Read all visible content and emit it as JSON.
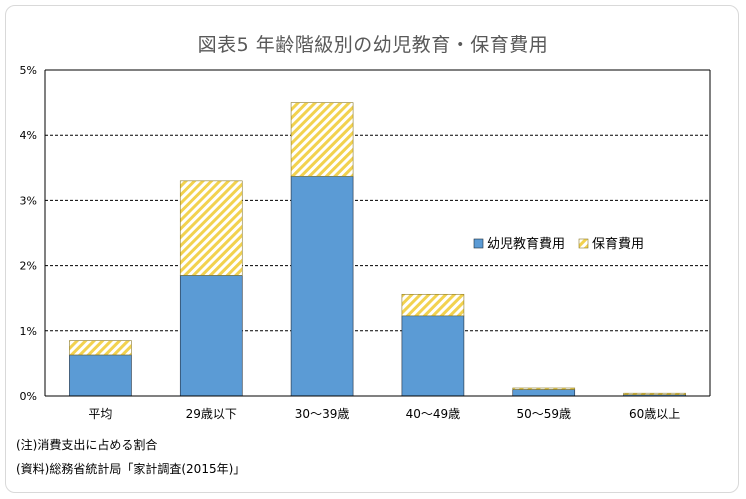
{
  "title": "図表5 年齢階級別の幼児教育・保育費用",
  "notes": [
    "(注)消費支出に占める割合",
    "(資料)総務省統計局「家計調査(2015年)」"
  ],
  "chart_data": {
    "type": "bar",
    "stacked": true,
    "title": "図表5 年齢階級別の幼児教育・保育費用",
    "categories": [
      "平均",
      "29歳以下",
      "30〜39歳",
      "40〜49歳",
      "50〜59歳",
      "60歳以上"
    ],
    "series": [
      {
        "name": "幼児教育費用",
        "values": [
          0.63,
          1.85,
          3.37,
          1.23,
          0.1,
          0.02
        ],
        "color": "#5b9bd5",
        "pattern": "solid"
      },
      {
        "name": "保育費用",
        "values": [
          0.22,
          1.45,
          1.13,
          0.33,
          0.01,
          0.01
        ],
        "color": "#f2d24f",
        "pattern": "diagonal-hatch"
      }
    ],
    "ylim": [
      0,
      5
    ],
    "yticks": [
      "0%",
      "1%",
      "2%",
      "3%",
      "4%",
      "5%"
    ],
    "grid": true,
    "legend_position": "right-middle"
  }
}
